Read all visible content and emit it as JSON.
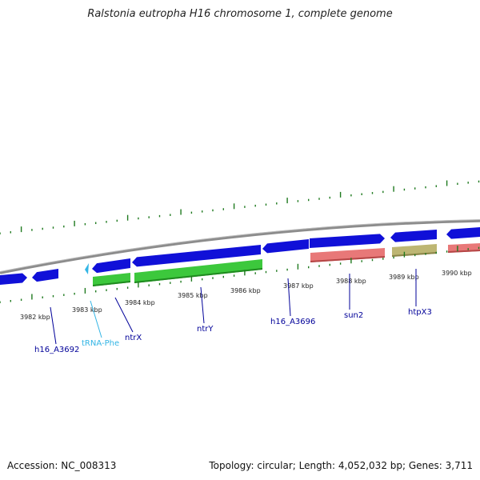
{
  "title": "Ralstonia eutropha H16 chromosome 1, complete genome",
  "footer": {
    "accession": "Accession: NC_008313",
    "summary": "Topology: circular; Length: 4,052,032 bp; Genes: 3,711"
  },
  "colors": {
    "backbone": "#8c8c8c",
    "ticks": "#1f7a1f",
    "cds_forward": "#1010d8",
    "cds_reverse_green": "#3cc83c",
    "cds_reverse_pink": "#e87878",
    "cds_reverse_olive": "#bdb673",
    "trna": "#33b5e5",
    "label_dark": "#000099",
    "label_trna": "#33b5e5"
  },
  "kbp_labels": [
    "3982 kbp",
    "3983 kbp",
    "3984 kbp",
    "3985 kbp",
    "3986 kbp",
    "3987 kbp",
    "3988 kbp",
    "3989 kbp",
    "3990 kbp"
  ],
  "gene_labels": [
    {
      "name": "h16_A3692",
      "color": "label_dark"
    },
    {
      "name": "tRNA-Phe",
      "color": "label_trna"
    },
    {
      "name": "ntrX",
      "color": "label_dark"
    },
    {
      "name": "ntrY",
      "color": "label_dark"
    },
    {
      "name": "h16_A3696",
      "color": "label_dark"
    },
    {
      "name": "sun2",
      "color": "label_dark"
    },
    {
      "name": "htpX3",
      "color": "label_dark"
    }
  ]
}
